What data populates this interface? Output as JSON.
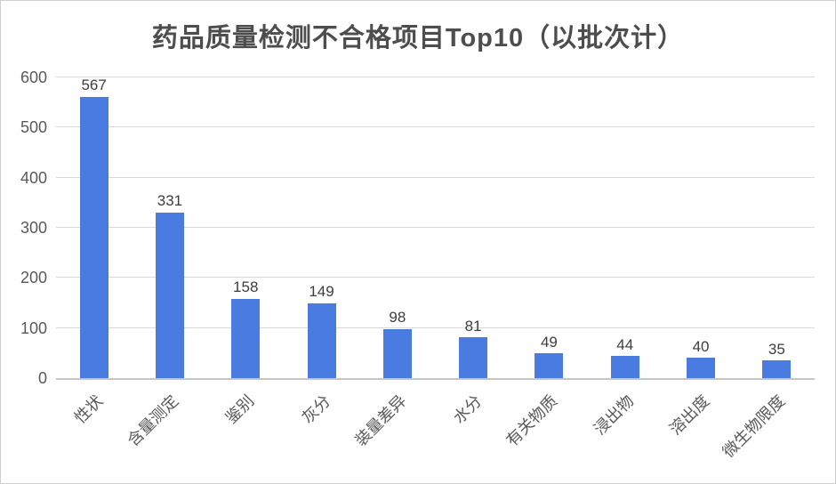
{
  "chart_data": {
    "type": "bar",
    "title": "药品质量检测不合格项目Top10（以批次计）",
    "categories": [
      "性状",
      "含量测定",
      "鉴别",
      "灰分",
      "装量差异",
      "水分",
      "有关物质",
      "浸出物",
      "溶出度",
      "微生物限度"
    ],
    "values": [
      567,
      331,
      158,
      149,
      98,
      81,
      49,
      44,
      40,
      35
    ],
    "xlabel": "",
    "ylabel": "",
    "ylim": [
      0,
      600
    ],
    "yticks": [
      0,
      100,
      200,
      300,
      400,
      500,
      600
    ],
    "grid": true,
    "legend_position": "none",
    "data_labels": true,
    "x_tick_rotation_deg": 45,
    "colors": {
      "bar": "#4a7be0",
      "grid": "#d9d9d9",
      "axis_line": "#c6c6c6",
      "title_text": "#4d4d4d",
      "tick_text": "#595959",
      "value_label_text": "#3d3d3d",
      "background": "#ffffff",
      "frame_border": "#cfcfcf"
    }
  }
}
